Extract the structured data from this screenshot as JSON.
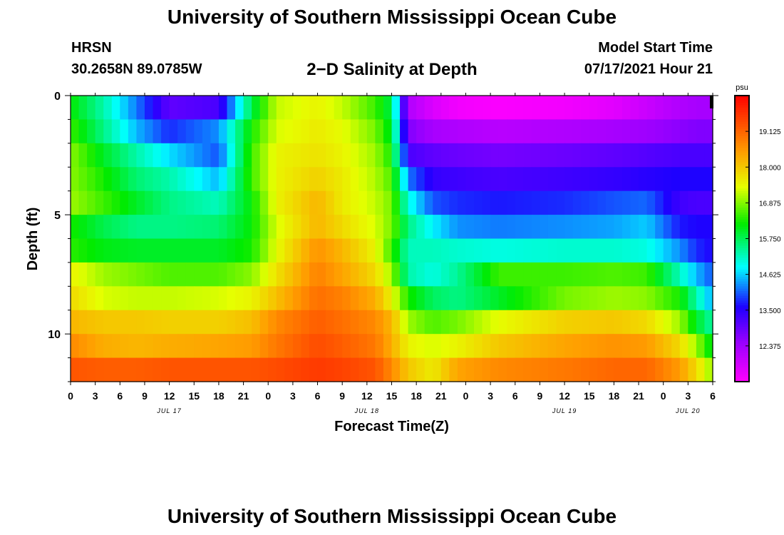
{
  "header": {
    "title": "University of Southern Mississippi Ocean Cube",
    "station": "HRSN",
    "coordinates": "30.2658N  89.0785W",
    "subtitle": "2−D Salinity at Depth",
    "model_start_label": "Model Start Time",
    "model_start_value": "07/17/2021 Hour 21"
  },
  "footer": {
    "title": "University of Southern Mississippi Ocean Cube"
  },
  "chart_data": {
    "type": "heatmap",
    "title": "2−D Salinity at Depth",
    "xlabel": "Forecast Time(Z)",
    "ylabel": "Depth (ft)",
    "x_range_hours": [
      0,
      78
    ],
    "ylim": [
      0,
      12
    ],
    "y_ticks": [
      0,
      5,
      10
    ],
    "x_tick_labels": [
      "0",
      "3",
      "6",
      "9",
      "12",
      "15",
      "18",
      "21",
      "0",
      "3",
      "6",
      "9",
      "12",
      "15",
      "18",
      "21",
      "0",
      "3",
      "6",
      "9",
      "12",
      "15",
      "18",
      "21",
      "0",
      "3",
      "6"
    ],
    "date_labels": [
      {
        "hour": 12,
        "label": "JUL 17"
      },
      {
        "hour": 36,
        "label": "JUL 18"
      },
      {
        "hour": 60,
        "label": "JUL 19"
      },
      {
        "hour": 75,
        "label": "JUL 20"
      }
    ],
    "colorbar": {
      "unit": "psu",
      "min": 11.25,
      "max": 20.25,
      "tick_values": [
        12.375,
        13.5,
        14.625,
        15.75,
        16.875,
        18.0,
        19.125
      ],
      "tick_labels": [
        "12.375",
        "13.500",
        "14.625",
        "15.750",
        "16.875",
        "18.000",
        "19.125"
      ]
    },
    "depth_layers_ft": [
      0.5,
      1.5,
      2.5,
      3.5,
      4.5,
      5.5,
      6.5,
      7.5,
      8.5,
      9.5,
      10.5,
      11.5
    ],
    "time_knots_hours": [
      0,
      4,
      8,
      12,
      18,
      22,
      25,
      30,
      33,
      37,
      39,
      41,
      44,
      47,
      52,
      60,
      66,
      70,
      74,
      76,
      78
    ],
    "salinity": [
      [
        16.2,
        15.3,
        14.2,
        13.0,
        13.2,
        15.8,
        17.2,
        17.5,
        17.2,
        16.5,
        15.8,
        12.2,
        11.7,
        11.4,
        11.3,
        11.4,
        11.6,
        11.9,
        12.2,
        12.3,
        12.3
      ],
      [
        16.5,
        15.5,
        14.5,
        13.8,
        14.3,
        16.3,
        17.3,
        17.6,
        17.4,
        16.8,
        16.0,
        12.7,
        12.3,
        12.2,
        12.1,
        12.2,
        12.3,
        12.4,
        12.6,
        12.7,
        12.7
      ],
      [
        16.9,
        16.0,
        15.3,
        14.7,
        14.0,
        16.5,
        17.5,
        17.7,
        17.5,
        17.0,
        16.3,
        13.2,
        13.0,
        12.9,
        12.8,
        12.9,
        13.0,
        13.1,
        13.2,
        13.2,
        13.2
      ],
      [
        16.9,
        16.3,
        15.6,
        15.3,
        14.5,
        16.5,
        17.5,
        17.9,
        17.6,
        17.1,
        16.6,
        14.2,
        13.4,
        13.3,
        13.2,
        13.3,
        13.4,
        13.5,
        13.6,
        13.6,
        13.6
      ],
      [
        17.0,
        16.5,
        16.0,
        15.5,
        15.2,
        16.2,
        17.5,
        18.2,
        17.6,
        17.2,
        16.8,
        15.0,
        14.0,
        13.8,
        13.7,
        13.8,
        14.0,
        14.1,
        13.3,
        13.2,
        13.2
      ],
      [
        16.3,
        15.8,
        15.5,
        15.5,
        15.6,
        16.2,
        17.3,
        18.2,
        17.8,
        17.3,
        16.8,
        15.5,
        14.8,
        14.3,
        14.2,
        14.3,
        14.4,
        14.6,
        13.7,
        13.6,
        13.6
      ],
      [
        16.4,
        16.1,
        16.0,
        16.0,
        16.0,
        16.3,
        17.4,
        18.6,
        18.2,
        17.5,
        16.5,
        15.2,
        15.2,
        15.1,
        15.0,
        15.1,
        15.1,
        15.0,
        14.3,
        13.8,
        13.6
      ],
      [
        17.5,
        17.0,
        16.8,
        16.6,
        16.6,
        16.9,
        17.7,
        18.8,
        18.4,
        17.8,
        17.0,
        15.3,
        15.0,
        15.4,
        16.5,
        16.5,
        16.6,
        16.5,
        15.2,
        14.5,
        14.0
      ],
      [
        17.8,
        17.3,
        17.2,
        17.2,
        17.3,
        17.5,
        18.1,
        19.0,
        18.8,
        18.3,
        17.5,
        16.3,
        15.7,
        15.5,
        16.0,
        16.8,
        17.0,
        16.9,
        16.3,
        15.3,
        14.4
      ],
      [
        18.2,
        18.0,
        18.0,
        17.9,
        17.9,
        18.1,
        18.7,
        19.2,
        19.0,
        18.7,
        18.2,
        17.0,
        16.6,
        16.8,
        17.4,
        17.9,
        18.0,
        17.8,
        17.0,
        16.0,
        15.3
      ],
      [
        18.7,
        18.3,
        18.2,
        18.3,
        18.4,
        18.5,
        18.9,
        19.4,
        19.2,
        18.9,
        18.3,
        17.5,
        17.3,
        17.5,
        18.0,
        18.4,
        18.6,
        18.5,
        17.8,
        17.0,
        16.0
      ],
      [
        19.3,
        19.2,
        19.2,
        19.3,
        19.3,
        19.3,
        19.4,
        19.6,
        19.5,
        19.3,
        18.7,
        18.0,
        17.6,
        18.4,
        18.7,
        18.9,
        19.1,
        19.1,
        18.5,
        17.8,
        16.9
      ]
    ]
  }
}
